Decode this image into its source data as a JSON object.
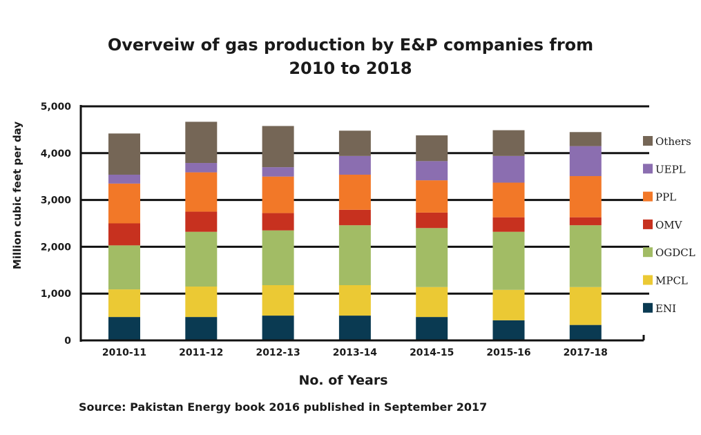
{
  "chart_data": {
    "type": "bar",
    "stacked": true,
    "title_lines": [
      "Overveiw of gas production by E&P companies from",
      "2010 to 2018"
    ],
    "xlabel": "No. of Years",
    "ylabel": "Million cubic feet per day",
    "categories": [
      "2010-11",
      "2011-12",
      "2012-13",
      "2013-14",
      "2014-15",
      "2015-16",
      "2017-18"
    ],
    "ylim": [
      0,
      5000
    ],
    "yticks": [
      0,
      1000,
      2000,
      3000,
      4000,
      5000
    ],
    "ytick_labels": [
      "0",
      "1,000",
      "2,000",
      "3,000",
      "4,000",
      "5,000"
    ],
    "grid": true,
    "legend_position": "right",
    "series": [
      {
        "name": "ENI",
        "color": "#0a3a52",
        "values": [
          500,
          500,
          530,
          530,
          500,
          430,
          330
        ]
      },
      {
        "name": "MPCL",
        "color": "#ebc934",
        "values": [
          590,
          650,
          650,
          650,
          640,
          650,
          810
        ]
      },
      {
        "name": "OGDCL",
        "color": "#a2bc65",
        "values": [
          940,
          1170,
          1170,
          1280,
          1260,
          1240,
          1320
        ]
      },
      {
        "name": "OMV",
        "color": "#c7311f",
        "values": [
          470,
          430,
          370,
          330,
          330,
          310,
          170
        ]
      },
      {
        "name": "PPL",
        "color": "#f27828",
        "values": [
          850,
          840,
          780,
          750,
          690,
          740,
          880
        ]
      },
      {
        "name": "UEPL",
        "color": "#8b6eb0",
        "values": [
          190,
          200,
          200,
          400,
          410,
          570,
          640
        ]
      },
      {
        "name": "Others",
        "color": "#756656",
        "values": [
          880,
          880,
          880,
          540,
          550,
          550,
          300
        ]
      }
    ],
    "legend_order": [
      "Others",
      "UEPL",
      "PPL",
      "OMV",
      "OGDCL",
      "MPCL",
      "ENI"
    ]
  },
  "source_note": "Source: Pakistan Energy book 2016 published in September 2017"
}
